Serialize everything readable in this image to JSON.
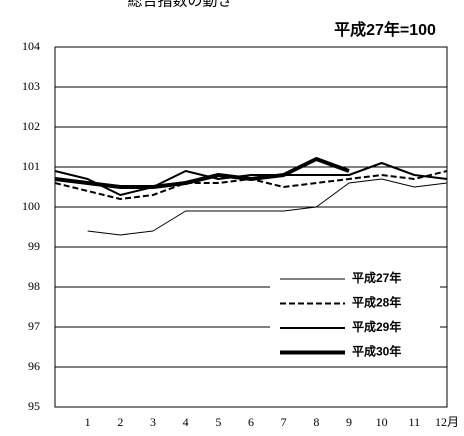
{
  "chart_data": {
    "type": "line",
    "title": "総合指数の動き",
    "subtitle": "平成27年=100",
    "categories": [
      null,
      "1",
      "2",
      "3",
      "4",
      "5",
      "6",
      "7",
      "8",
      "9",
      "10",
      "11",
      "12月"
    ],
    "ylim": [
      95,
      104
    ],
    "yticks": [
      95,
      96,
      97,
      98,
      99,
      100,
      101,
      102,
      103,
      104
    ],
    "grid": true,
    "legend": "lower-right",
    "series": [
      {
        "name": "平成27年",
        "color": "#000000",
        "line_width": 1,
        "dashed": false,
        "values": [
          null,
          99.4,
          99.3,
          99.4,
          99.9,
          99.9,
          99.9,
          99.9,
          100.0,
          100.6,
          100.7,
          100.5,
          100.6
        ]
      },
      {
        "name": "平成28年",
        "color": "#000000",
        "line_width": 2,
        "dashed": true,
        "values": [
          100.6,
          100.4,
          100.2,
          100.3,
          100.6,
          100.6,
          100.7,
          100.5,
          100.6,
          100.7,
          100.8,
          100.7,
          100.9
        ]
      },
      {
        "name": "平成29年",
        "color": "#000000",
        "line_width": 2,
        "dashed": false,
        "values": [
          100.9,
          100.7,
          100.3,
          100.5,
          100.9,
          100.7,
          100.8,
          100.8,
          100.8,
          100.8,
          101.1,
          100.8,
          100.7
        ]
      },
      {
        "name": "平成30年",
        "color": "#000000",
        "line_width": 4,
        "dashed": false,
        "values": [
          100.7,
          100.6,
          100.5,
          100.5,
          100.6,
          100.8,
          100.7,
          100.8,
          101.2,
          100.9,
          null,
          null,
          null
        ]
      }
    ]
  }
}
